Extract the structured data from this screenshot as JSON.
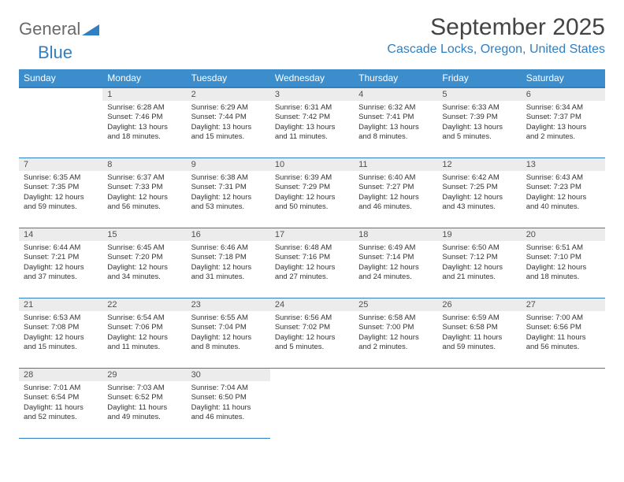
{
  "brand": {
    "word1": "General",
    "word2": "Blue"
  },
  "title": "September 2025",
  "location": "Cascade Locks, Oregon, United States",
  "colors": {
    "header_bg": "#3c8dcc",
    "header_border": "#2f7fc2",
    "daynum_bg": "#ececec",
    "accent": "#2f7fc2",
    "text": "#333333",
    "logo_grey": "#6a6a6a"
  },
  "weekdays": [
    "Sunday",
    "Monday",
    "Tuesday",
    "Wednesday",
    "Thursday",
    "Friday",
    "Saturday"
  ],
  "weeks": [
    [
      null,
      {
        "n": "1",
        "sunrise": "Sunrise: 6:28 AM",
        "sunset": "Sunset: 7:46 PM",
        "day": "Daylight: 13 hours and 18 minutes."
      },
      {
        "n": "2",
        "sunrise": "Sunrise: 6:29 AM",
        "sunset": "Sunset: 7:44 PM",
        "day": "Daylight: 13 hours and 15 minutes."
      },
      {
        "n": "3",
        "sunrise": "Sunrise: 6:31 AM",
        "sunset": "Sunset: 7:42 PM",
        "day": "Daylight: 13 hours and 11 minutes."
      },
      {
        "n": "4",
        "sunrise": "Sunrise: 6:32 AM",
        "sunset": "Sunset: 7:41 PM",
        "day": "Daylight: 13 hours and 8 minutes."
      },
      {
        "n": "5",
        "sunrise": "Sunrise: 6:33 AM",
        "sunset": "Sunset: 7:39 PM",
        "day": "Daylight: 13 hours and 5 minutes."
      },
      {
        "n": "6",
        "sunrise": "Sunrise: 6:34 AM",
        "sunset": "Sunset: 7:37 PM",
        "day": "Daylight: 13 hours and 2 minutes."
      }
    ],
    [
      {
        "n": "7",
        "sunrise": "Sunrise: 6:35 AM",
        "sunset": "Sunset: 7:35 PM",
        "day": "Daylight: 12 hours and 59 minutes."
      },
      {
        "n": "8",
        "sunrise": "Sunrise: 6:37 AM",
        "sunset": "Sunset: 7:33 PM",
        "day": "Daylight: 12 hours and 56 minutes."
      },
      {
        "n": "9",
        "sunrise": "Sunrise: 6:38 AM",
        "sunset": "Sunset: 7:31 PM",
        "day": "Daylight: 12 hours and 53 minutes."
      },
      {
        "n": "10",
        "sunrise": "Sunrise: 6:39 AM",
        "sunset": "Sunset: 7:29 PM",
        "day": "Daylight: 12 hours and 50 minutes."
      },
      {
        "n": "11",
        "sunrise": "Sunrise: 6:40 AM",
        "sunset": "Sunset: 7:27 PM",
        "day": "Daylight: 12 hours and 46 minutes."
      },
      {
        "n": "12",
        "sunrise": "Sunrise: 6:42 AM",
        "sunset": "Sunset: 7:25 PM",
        "day": "Daylight: 12 hours and 43 minutes."
      },
      {
        "n": "13",
        "sunrise": "Sunrise: 6:43 AM",
        "sunset": "Sunset: 7:23 PM",
        "day": "Daylight: 12 hours and 40 minutes."
      }
    ],
    [
      {
        "n": "14",
        "sunrise": "Sunrise: 6:44 AM",
        "sunset": "Sunset: 7:21 PM",
        "day": "Daylight: 12 hours and 37 minutes."
      },
      {
        "n": "15",
        "sunrise": "Sunrise: 6:45 AM",
        "sunset": "Sunset: 7:20 PM",
        "day": "Daylight: 12 hours and 34 minutes."
      },
      {
        "n": "16",
        "sunrise": "Sunrise: 6:46 AM",
        "sunset": "Sunset: 7:18 PM",
        "day": "Daylight: 12 hours and 31 minutes."
      },
      {
        "n": "17",
        "sunrise": "Sunrise: 6:48 AM",
        "sunset": "Sunset: 7:16 PM",
        "day": "Daylight: 12 hours and 27 minutes."
      },
      {
        "n": "18",
        "sunrise": "Sunrise: 6:49 AM",
        "sunset": "Sunset: 7:14 PM",
        "day": "Daylight: 12 hours and 24 minutes."
      },
      {
        "n": "19",
        "sunrise": "Sunrise: 6:50 AM",
        "sunset": "Sunset: 7:12 PM",
        "day": "Daylight: 12 hours and 21 minutes."
      },
      {
        "n": "20",
        "sunrise": "Sunrise: 6:51 AM",
        "sunset": "Sunset: 7:10 PM",
        "day": "Daylight: 12 hours and 18 minutes."
      }
    ],
    [
      {
        "n": "21",
        "sunrise": "Sunrise: 6:53 AM",
        "sunset": "Sunset: 7:08 PM",
        "day": "Daylight: 12 hours and 15 minutes."
      },
      {
        "n": "22",
        "sunrise": "Sunrise: 6:54 AM",
        "sunset": "Sunset: 7:06 PM",
        "day": "Daylight: 12 hours and 11 minutes."
      },
      {
        "n": "23",
        "sunrise": "Sunrise: 6:55 AM",
        "sunset": "Sunset: 7:04 PM",
        "day": "Daylight: 12 hours and 8 minutes."
      },
      {
        "n": "24",
        "sunrise": "Sunrise: 6:56 AM",
        "sunset": "Sunset: 7:02 PM",
        "day": "Daylight: 12 hours and 5 minutes."
      },
      {
        "n": "25",
        "sunrise": "Sunrise: 6:58 AM",
        "sunset": "Sunset: 7:00 PM",
        "day": "Daylight: 12 hours and 2 minutes."
      },
      {
        "n": "26",
        "sunrise": "Sunrise: 6:59 AM",
        "sunset": "Sunset: 6:58 PM",
        "day": "Daylight: 11 hours and 59 minutes."
      },
      {
        "n": "27",
        "sunrise": "Sunrise: 7:00 AM",
        "sunset": "Sunset: 6:56 PM",
        "day": "Daylight: 11 hours and 56 minutes."
      }
    ],
    [
      {
        "n": "28",
        "sunrise": "Sunrise: 7:01 AM",
        "sunset": "Sunset: 6:54 PM",
        "day": "Daylight: 11 hours and 52 minutes."
      },
      {
        "n": "29",
        "sunrise": "Sunrise: 7:03 AM",
        "sunset": "Sunset: 6:52 PM",
        "day": "Daylight: 11 hours and 49 minutes."
      },
      {
        "n": "30",
        "sunrise": "Sunrise: 7:04 AM",
        "sunset": "Sunset: 6:50 PM",
        "day": "Daylight: 11 hours and 46 minutes."
      },
      null,
      null,
      null,
      null
    ]
  ]
}
